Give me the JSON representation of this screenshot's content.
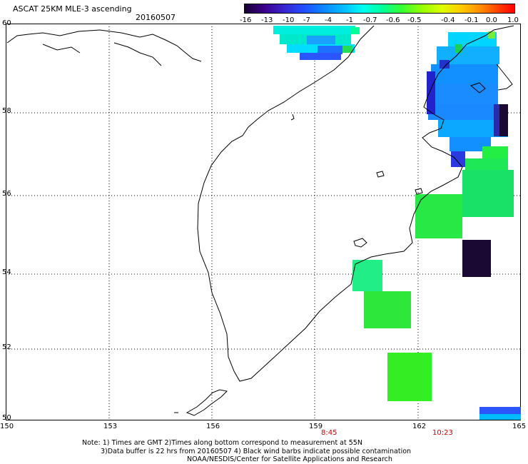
{
  "title": "ASCAT 25KM MLE-3 ascending",
  "date": "20160507",
  "colorbar": {
    "labels": [
      "-16",
      "-13",
      "-10",
      "-7",
      "-4",
      "-1",
      "-0.7",
      "-0.6",
      "-0.5",
      "-0.4",
      "-0.1",
      "0.0",
      "1.0"
    ]
  },
  "y_axis": {
    "labels": [
      "60",
      "58",
      "56",
      "54",
      "52",
      "50"
    ]
  },
  "x_axis": {
    "labels": [
      "150",
      "153",
      "156",
      "159",
      "162",
      "165"
    ]
  },
  "times": {
    "t1": "8:45",
    "t2": "10:23"
  },
  "notes": {
    "line1": "Note: 1) Times are GMT 2)Times along bottom correspond to measurement at 55N",
    "line2": "3)Data buffer is 22 hrs from 20160507 4) Black wind barbs indicate possible contamination",
    "line3": "NOAA/NESDIS/Center for Satellite Applications and Research"
  }
}
